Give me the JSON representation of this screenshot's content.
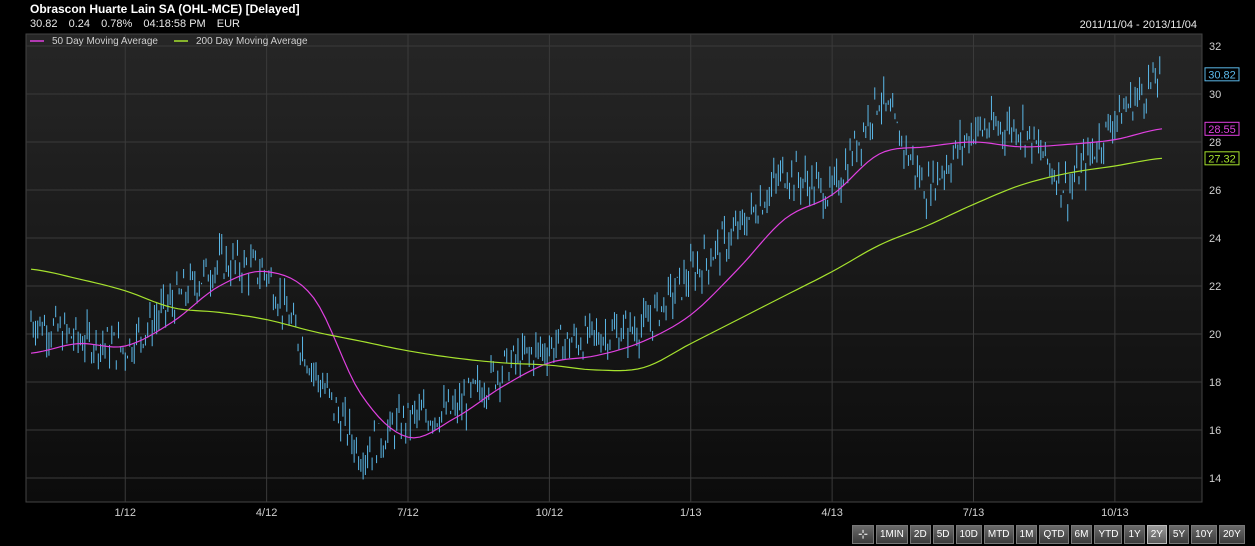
{
  "header": {
    "title": "Obrascon Huarte Lain SA (OHL-MCE) [Delayed]",
    "last": "30.82",
    "change": "0.24",
    "change_pct": "0.78%",
    "time": "04:18:58 PM",
    "currency": "EUR",
    "range": "2011/11/04 - 2013/11/04"
  },
  "toolbar": {
    "icon": "zoom-icon",
    "buttons": [
      "1MIN",
      "2D",
      "5D",
      "10D",
      "MTD",
      "1M",
      "QTD",
      "6M",
      "YTD",
      "1Y",
      "2Y",
      "5Y",
      "10Y",
      "20Y"
    ],
    "active": "2Y"
  },
  "chart_data": {
    "type": "line",
    "grid": true,
    "legend_position": "top-left",
    "x_ticks": [
      "1/12",
      "4/12",
      "7/12",
      "10/12",
      "1/13",
      "4/13",
      "7/13",
      "10/13"
    ],
    "y_ticks": [
      14,
      16,
      18,
      20,
      22,
      24,
      26,
      28,
      30,
      32
    ],
    "ylim": [
      13,
      32.5
    ],
    "x_months": [
      "2011-11",
      "2011-12",
      "2012-01",
      "2012-02",
      "2012-03",
      "2012-04",
      "2012-05",
      "2012-06",
      "2012-07",
      "2012-08",
      "2012-09",
      "2012-10",
      "2012-11",
      "2012-12",
      "2013-01",
      "2013-02",
      "2013-03",
      "2013-04",
      "2013-05",
      "2013-06",
      "2013-07",
      "2013-08",
      "2013-09",
      "2013-10",
      "2013-11"
    ],
    "series": [
      {
        "name": "Price",
        "color": "#5bb8e8",
        "values": [
          20.6,
          19.8,
          19.4,
          21.3,
          23.0,
          22.6,
          18.5,
          15.0,
          16.5,
          16.8,
          18.6,
          19.5,
          19.9,
          20.3,
          22.5,
          24.3,
          26.8,
          25.8,
          29.9,
          26.0,
          28.5,
          28.7,
          26.0,
          29.0,
          30.82
        ]
      },
      {
        "name": "50 Day Moving Average",
        "color": "#e040e0",
        "values": [
          19.2,
          19.6,
          19.5,
          20.5,
          22.0,
          22.6,
          21.5,
          17.5,
          15.7,
          16.5,
          17.8,
          18.8,
          19.1,
          19.7,
          20.8,
          22.7,
          24.8,
          25.8,
          27.5,
          27.8,
          28.0,
          27.8,
          27.9,
          28.1,
          28.55
        ]
      },
      {
        "name": "200 Day Moving Average",
        "color": "#a6e22e",
        "values": [
          22.7,
          22.3,
          21.8,
          21.1,
          20.9,
          20.6,
          20.1,
          19.7,
          19.3,
          19.0,
          18.8,
          18.7,
          18.5,
          18.6,
          19.6,
          20.6,
          21.6,
          22.6,
          23.7,
          24.5,
          25.4,
          26.2,
          26.7,
          27.0,
          27.32
        ]
      }
    ],
    "last_labels": [
      "30.82",
      "28.55",
      "27.32"
    ]
  }
}
